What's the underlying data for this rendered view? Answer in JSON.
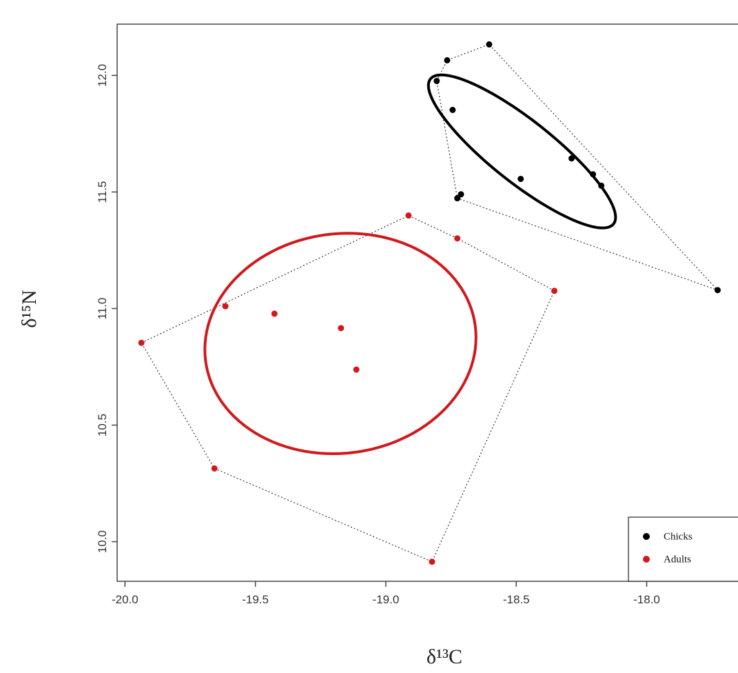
{
  "chart_data": {
    "type": "scatter",
    "x_label": "δ¹³C",
    "y_label": "δ¹⁵N",
    "xlim": [
      -20.03,
      -17.65
    ],
    "ylim": [
      9.83,
      12.22
    ],
    "xticks": [
      {
        "value": -20,
        "label": "-20.0"
      },
      -19.5,
      {
        "value": -19,
        "label": "-19.0"
      },
      -18.5,
      {
        "value": -18,
        "label": "-18.0"
      }
    ],
    "yticks": [
      {
        "value": 10,
        "label": "10.0"
      },
      10.5,
      {
        "value": 11,
        "label": "11.0"
      },
      11.5,
      {
        "value": 12,
        "label": "12.0"
      }
    ],
    "legend": "bottomright",
    "series": [
      {
        "name": "Chicks",
        "color": "#000000",
        "x": [
          -18.604,
          -18.765,
          -18.805,
          -18.744,
          -18.288,
          -18.206,
          -18.174,
          -18.483,
          -18.712,
          -18.726,
          -17.728
        ],
        "values": [
          12.133,
          12.065,
          11.976,
          11.852,
          11.644,
          11.576,
          11.527,
          11.556,
          11.49,
          11.473,
          11.079
        ],
        "ellipse": {
          "center": [
            -18.478,
            11.674
          ],
          "axes": [
            [
              0.351,
              -0.311
            ],
            [
              -0.074,
              -0.105
            ]
          ]
        }
      },
      {
        "name": "Adults",
        "color": "#d0191c",
        "x": [
          -18.913,
          -18.726,
          -18.354,
          -18.823,
          -19.657,
          -19.937,
          -19.615,
          -19.427,
          -19.172,
          -19.113
        ],
        "values": [
          11.399,
          11.301,
          11.076,
          9.914,
          10.314,
          10.853,
          11.01,
          10.978,
          10.916,
          10.738
        ],
        "ellipse": {
          "center": [
            -19.174,
            10.85
          ],
          "axes": [
            [
              0.517,
              0.074
            ],
            [
              0.053,
              -0.467
            ]
          ]
        }
      }
    ]
  }
}
